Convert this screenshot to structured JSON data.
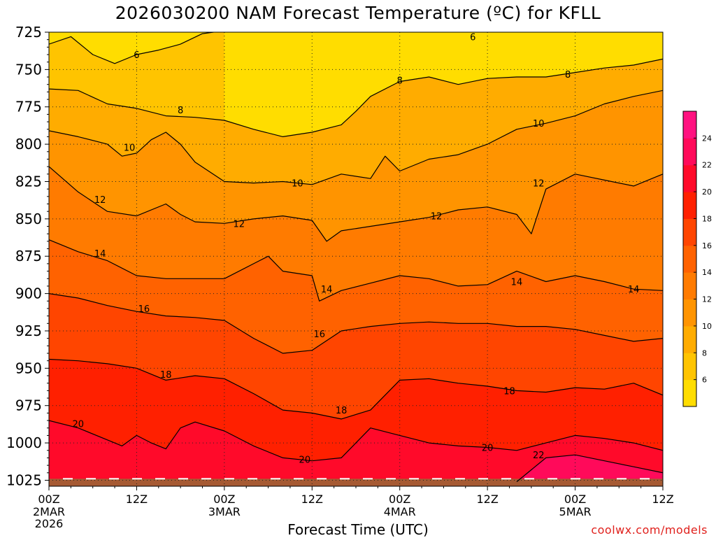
{
  "chart_data": {
    "type": "heatmap",
    "title": "2026030200 NAM Forecast Temperature (ºC) for KFLL",
    "xlabel": "Forecast Time (UTC)",
    "ylabel": "",
    "credit": "coolwx.com/models",
    "x_ticks": [
      {
        "hour": 0,
        "label": "00Z",
        "date": "2MAR",
        "year": "2026"
      },
      {
        "hour": 12,
        "label": "12Z",
        "date": "",
        "year": ""
      },
      {
        "hour": 24,
        "label": "00Z",
        "date": "3MAR",
        "year": ""
      },
      {
        "hour": 36,
        "label": "12Z",
        "date": "",
        "year": ""
      },
      {
        "hour": 48,
        "label": "00Z",
        "date": "4MAR",
        "year": ""
      },
      {
        "hour": 60,
        "label": "12Z",
        "date": "",
        "year": ""
      },
      {
        "hour": 72,
        "label": "00Z",
        "date": "5MAR",
        "year": ""
      },
      {
        "hour": 84,
        "label": "12Z",
        "date": "",
        "year": ""
      }
    ],
    "xlim": [
      0,
      84
    ],
    "y_ticks": [
      725,
      750,
      775,
      800,
      825,
      850,
      875,
      900,
      925,
      950,
      975,
      1000,
      1025
    ],
    "ylim": [
      725,
      1029
    ],
    "grid": true,
    "colorbar": {
      "labels": [
        6,
        8,
        10,
        12,
        14,
        16,
        18,
        20,
        22,
        24
      ],
      "levels": [
        4,
        6,
        8,
        10,
        12,
        14,
        16,
        18,
        20,
        22,
        24,
        26
      ],
      "colors": [
        "#ffdd00",
        "#ffc400",
        "#ffac00",
        "#ff9400",
        "#ff7b00",
        "#ff6200",
        "#ff4500",
        "#ff2000",
        "#ff0a2a",
        "#ff0a5a",
        "#ff1280"
      ]
    },
    "isotherms": [
      {
        "value": 6,
        "points": [
          [
            0,
            733
          ],
          [
            3,
            728
          ],
          [
            6,
            740
          ],
          [
            9,
            746
          ],
          [
            12,
            740
          ],
          [
            15,
            737
          ],
          [
            18,
            733
          ],
          [
            21,
            726
          ],
          [
            24,
            724
          ]
        ]
      },
      {
        "value": 8,
        "points": [
          [
            0,
            763
          ],
          [
            4,
            764
          ],
          [
            8,
            773
          ],
          [
            12,
            776
          ],
          [
            16,
            781
          ],
          [
            20,
            782
          ],
          [
            24,
            784
          ],
          [
            28,
            790
          ],
          [
            32,
            795
          ],
          [
            36,
            792
          ],
          [
            40,
            787
          ],
          [
            42,
            778
          ],
          [
            44,
            768
          ],
          [
            48,
            758
          ],
          [
            52,
            755
          ],
          [
            56,
            760
          ],
          [
            60,
            756
          ],
          [
            64,
            755
          ],
          [
            68,
            755
          ],
          [
            72,
            752
          ],
          [
            76,
            749
          ],
          [
            80,
            747
          ],
          [
            84,
            743
          ]
        ]
      },
      {
        "value": 10,
        "points": [
          [
            0,
            791
          ],
          [
            4,
            795
          ],
          [
            8,
            800
          ],
          [
            10,
            808
          ],
          [
            12,
            806
          ],
          [
            14,
            797
          ],
          [
            16,
            792
          ],
          [
            18,
            800
          ],
          [
            20,
            812
          ],
          [
            24,
            825
          ],
          [
            28,
            826
          ],
          [
            32,
            825
          ],
          [
            36,
            827
          ],
          [
            40,
            820
          ],
          [
            44,
            823
          ],
          [
            46,
            808
          ],
          [
            48,
            818
          ],
          [
            52,
            810
          ],
          [
            56,
            807
          ],
          [
            60,
            800
          ],
          [
            64,
            790
          ],
          [
            68,
            786
          ],
          [
            72,
            781
          ],
          [
            76,
            773
          ],
          [
            80,
            768
          ],
          [
            84,
            764
          ]
        ]
      },
      {
        "value": 12,
        "points": [
          [
            0,
            815
          ],
          [
            4,
            832
          ],
          [
            8,
            845
          ],
          [
            12,
            848
          ],
          [
            16,
            840
          ],
          [
            18,
            847
          ],
          [
            20,
            852
          ],
          [
            24,
            853
          ],
          [
            28,
            850
          ],
          [
            32,
            848
          ],
          [
            36,
            851
          ],
          [
            38,
            865
          ],
          [
            40,
            858
          ],
          [
            44,
            855
          ],
          [
            48,
            852
          ],
          [
            52,
            849
          ],
          [
            56,
            844
          ],
          [
            60,
            842
          ],
          [
            64,
            847
          ],
          [
            66,
            860
          ],
          [
            68,
            830
          ],
          [
            72,
            820
          ],
          [
            76,
            824
          ],
          [
            80,
            828
          ],
          [
            84,
            820
          ]
        ]
      },
      {
        "value": 14,
        "points": [
          [
            0,
            864
          ],
          [
            4,
            872
          ],
          [
            8,
            878
          ],
          [
            12,
            888
          ],
          [
            16,
            890
          ],
          [
            20,
            890
          ],
          [
            24,
            890
          ],
          [
            28,
            880
          ],
          [
            30,
            875
          ],
          [
            32,
            885
          ],
          [
            36,
            888
          ],
          [
            37,
            905
          ],
          [
            40,
            898
          ],
          [
            44,
            893
          ],
          [
            48,
            888
          ],
          [
            52,
            890
          ],
          [
            56,
            895
          ],
          [
            60,
            894
          ],
          [
            64,
            885
          ],
          [
            68,
            892
          ],
          [
            72,
            888
          ],
          [
            76,
            892
          ],
          [
            80,
            897
          ],
          [
            84,
            898
          ]
        ]
      },
      {
        "value": 16,
        "points": [
          [
            0,
            900
          ],
          [
            4,
            903
          ],
          [
            8,
            908
          ],
          [
            12,
            912
          ],
          [
            16,
            915
          ],
          [
            20,
            916
          ],
          [
            24,
            918
          ],
          [
            28,
            930
          ],
          [
            32,
            940
          ],
          [
            36,
            938
          ],
          [
            40,
            925
          ],
          [
            44,
            922
          ],
          [
            48,
            920
          ],
          [
            52,
            919
          ],
          [
            56,
            920
          ],
          [
            60,
            920
          ],
          [
            64,
            922
          ],
          [
            68,
            922
          ],
          [
            72,
            924
          ],
          [
            76,
            928
          ],
          [
            80,
            932
          ],
          [
            84,
            930
          ]
        ]
      },
      {
        "value": 18,
        "points": [
          [
            0,
            944
          ],
          [
            4,
            945
          ],
          [
            8,
            947
          ],
          [
            12,
            950
          ],
          [
            16,
            958
          ],
          [
            20,
            955
          ],
          [
            24,
            957
          ],
          [
            28,
            967
          ],
          [
            32,
            978
          ],
          [
            36,
            980
          ],
          [
            40,
            984
          ],
          [
            44,
            978
          ],
          [
            48,
            958
          ],
          [
            52,
            957
          ],
          [
            56,
            960
          ],
          [
            60,
            962
          ],
          [
            64,
            965
          ],
          [
            68,
            966
          ],
          [
            72,
            963
          ],
          [
            76,
            964
          ],
          [
            80,
            960
          ],
          [
            84,
            968
          ]
        ]
      },
      {
        "value": 20,
        "points": [
          [
            0,
            985
          ],
          [
            4,
            990
          ],
          [
            8,
            998
          ],
          [
            10,
            1002
          ],
          [
            12,
            995
          ],
          [
            14,
            1000
          ],
          [
            16,
            1004
          ],
          [
            18,
            990
          ],
          [
            20,
            986
          ],
          [
            24,
            992
          ],
          [
            28,
            1002
          ],
          [
            32,
            1010
          ],
          [
            36,
            1012
          ],
          [
            40,
            1010
          ],
          [
            42,
            1000
          ],
          [
            44,
            990
          ],
          [
            48,
            995
          ],
          [
            52,
            1000
          ],
          [
            56,
            1002
          ],
          [
            60,
            1003
          ],
          [
            64,
            1005
          ],
          [
            68,
            1000
          ],
          [
            72,
            995
          ],
          [
            76,
            997
          ],
          [
            80,
            1000
          ],
          [
            84,
            1005
          ]
        ]
      },
      {
        "value": 22,
        "points": [
          [
            64,
            1026
          ],
          [
            66,
            1018
          ],
          [
            68,
            1010
          ],
          [
            72,
            1008
          ],
          [
            76,
            1012
          ],
          [
            80,
            1016
          ],
          [
            84,
            1020
          ]
        ]
      }
    ],
    "isotherm_labels": [
      {
        "value": 6,
        "hour": 12,
        "p": 740
      },
      {
        "value": 6,
        "hour": 58,
        "p": 728
      },
      {
        "value": 8,
        "hour": 18,
        "p": 777
      },
      {
        "value": 8,
        "hour": 48,
        "p": 757
      },
      {
        "value": 8,
        "hour": 71,
        "p": 753
      },
      {
        "value": 10,
        "hour": 11,
        "p": 802
      },
      {
        "value": 10,
        "hour": 34,
        "p": 826
      },
      {
        "value": 10,
        "hour": 67,
        "p": 786
      },
      {
        "value": 12,
        "hour": 7,
        "p": 837
      },
      {
        "value": 12,
        "hour": 26,
        "p": 853
      },
      {
        "value": 12,
        "hour": 53,
        "p": 848
      },
      {
        "value": 12,
        "hour": 67,
        "p": 826
      },
      {
        "value": 14,
        "hour": 7,
        "p": 873
      },
      {
        "value": 14,
        "hour": 38,
        "p": 897
      },
      {
        "value": 14,
        "hour": 64,
        "p": 892
      },
      {
        "value": 14,
        "hour": 80,
        "p": 897
      },
      {
        "value": 16,
        "hour": 13,
        "p": 910
      },
      {
        "value": 16,
        "hour": 37,
        "p": 927
      },
      {
        "value": 18,
        "hour": 16,
        "p": 954
      },
      {
        "value": 18,
        "hour": 40,
        "p": 978
      },
      {
        "value": 18,
        "hour": 63,
        "p": 965
      },
      {
        "value": 20,
        "hour": 4,
        "p": 987
      },
      {
        "value": 20,
        "hour": 35,
        "p": 1011
      },
      {
        "value": 20,
        "hour": 60,
        "p": 1003
      },
      {
        "value": 22,
        "hour": 67,
        "p": 1008
      }
    ]
  }
}
